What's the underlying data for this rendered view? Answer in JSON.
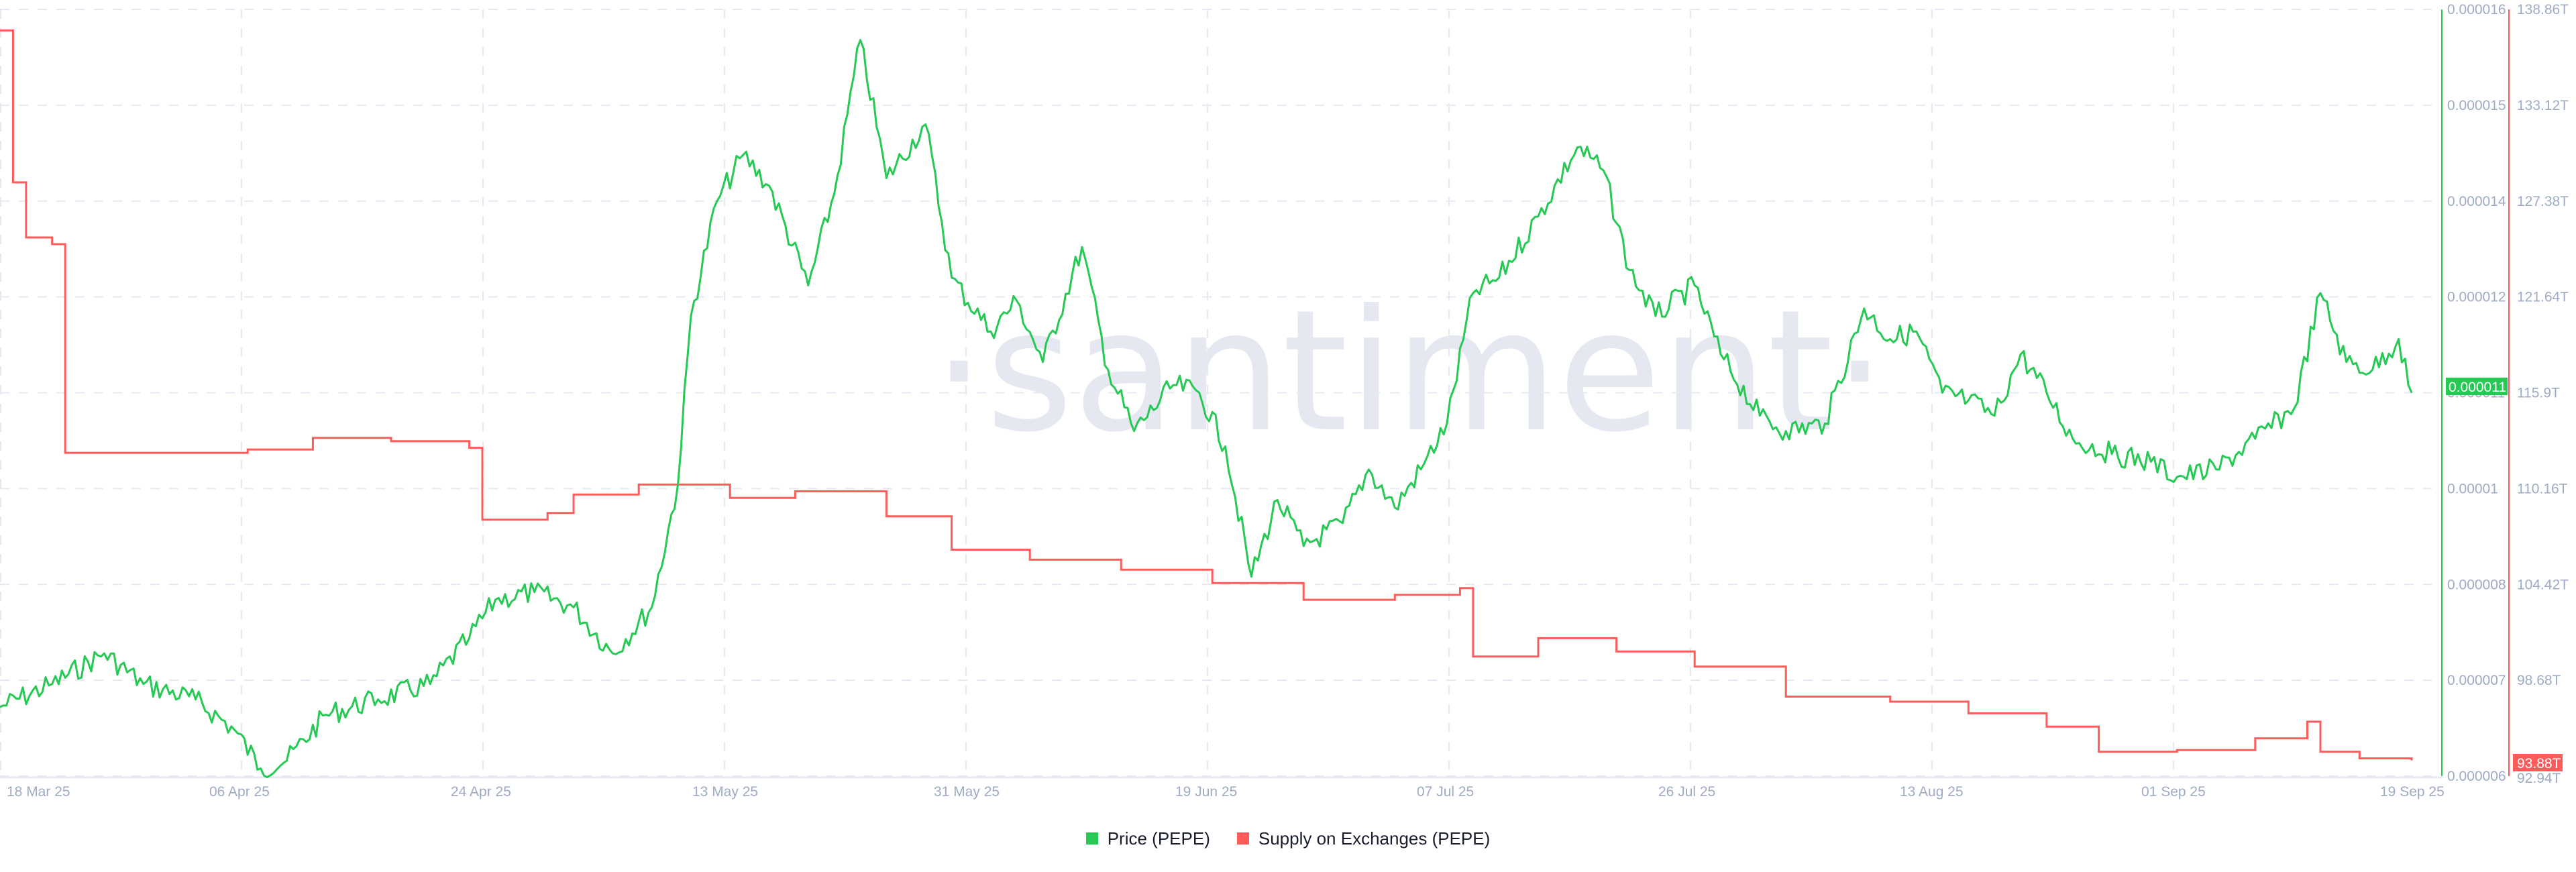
{
  "chart_data": {
    "type": "line",
    "title": "",
    "watermark": "·santiment·",
    "x_labels": [
      "18 Mar 25",
      "06 Apr 25",
      "24 Apr 25",
      "13 May 25",
      "31 May 25",
      "19 Jun 25",
      "07 Jul 25",
      "26 Jul 25",
      "13 Aug 25",
      "01 Sep 25",
      "19 Sep 25"
    ],
    "x_range": [
      "18 Mar 25",
      "19 Sep 25"
    ],
    "grid": true,
    "legend_position": "bottom-center",
    "axes": {
      "price": {
        "side": "right-inner",
        "color": "#26c953",
        "ticks": [
          "0.000016",
          "0.000015",
          "0.000014",
          "0.000012",
          "0.000011",
          "0.00001",
          "0.000008",
          "0.000007",
          "0.000006"
        ],
        "range": [
          6e-06,
          1.6e-05
        ],
        "current_value_badge": "0.000011"
      },
      "supply": {
        "side": "right-outer",
        "color": "#ff5b5b",
        "ticks": [
          "138.86T",
          "133.12T",
          "127.38T",
          "121.64T",
          "115.9T",
          "110.16T",
          "104.42T",
          "98.68T",
          "92.94T"
        ],
        "range": [
          92.94,
          138.86
        ],
        "unit": "T",
        "current_value_badge": "93.88T"
      }
    },
    "series": [
      {
        "name": "Price (PEPE)",
        "color": "#26c953",
        "axis": "price",
        "approx_points": [
          [
            "18 Mar 25",
            6.9e-06
          ],
          [
            "22 Mar 25",
            7.2e-06
          ],
          [
            "26 Mar 25",
            7.6e-06
          ],
          [
            "29 Mar 25",
            7.2e-06
          ],
          [
            "02 Apr 25",
            7e-06
          ],
          [
            "05 Apr 25",
            6.6e-06
          ],
          [
            "07 Apr 25",
            6.1e-06
          ],
          [
            "09 Apr 25",
            6.2e-06
          ],
          [
            "12 Apr 25",
            6.8e-06
          ],
          [
            "16 Apr 25",
            7e-06
          ],
          [
            "20 Apr 25",
            7.2e-06
          ],
          [
            "23 Apr 25",
            7.8e-06
          ],
          [
            "25 Apr 25",
            8.3e-06
          ],
          [
            "28 Apr 25",
            8.4e-06
          ],
          [
            "01 May 25",
            8.2e-06
          ],
          [
            "04 May 25",
            7.6e-06
          ],
          [
            "07 May 25",
            8.2e-06
          ],
          [
            "09 May 25",
            9.8e-06
          ],
          [
            "10 May 25",
            1.2e-05
          ],
          [
            "12 May 25",
            1.35e-05
          ],
          [
            "14 May 25",
            1.41e-05
          ],
          [
            "16 May 25",
            1.37e-05
          ],
          [
            "19 May 25",
            1.24e-05
          ],
          [
            "21 May 25",
            1.36e-05
          ],
          [
            "23 May 25",
            1.56e-05
          ],
          [
            "25 May 25",
            1.38e-05
          ],
          [
            "28 May 25",
            1.45e-05
          ],
          [
            "30 May 25",
            1.25e-05
          ],
          [
            "02 Jun 25",
            1.18e-05
          ],
          [
            "04 Jun 25",
            1.22e-05
          ],
          [
            "06 Jun 25",
            1.14e-05
          ],
          [
            "09 Jun 25",
            1.29e-05
          ],
          [
            "11 Jun 25",
            1.13e-05
          ],
          [
            "13 Jun 25",
            1.05e-05
          ],
          [
            "16 Jun 25",
            1.11e-05
          ],
          [
            "18 Jun 25",
            1.1e-05
          ],
          [
            "20 Jun 25",
            1.03e-05
          ],
          [
            "22 Jun 25",
            8.6e-06
          ],
          [
            "24 Jun 25",
            9.6e-06
          ],
          [
            "26 Jun 25",
            9e-06
          ],
          [
            "29 Jun 25",
            9.3e-06
          ],
          [
            "01 Jul 25",
            1e-05
          ],
          [
            "03 Jul 25",
            9.5e-06
          ],
          [
            "05 Jul 25",
            1e-05
          ],
          [
            "07 Jul 25",
            1.06e-05
          ],
          [
            "09 Jul 25",
            1.23e-05
          ],
          [
            "11 Jul 25",
            1.25e-05
          ],
          [
            "14 Jul 25",
            1.33e-05
          ],
          [
            "17 Jul 25",
            1.42e-05
          ],
          [
            "19 Jul 25",
            1.39e-05
          ],
          [
            "21 Jul 25",
            1.26e-05
          ],
          [
            "23 Jul 25",
            1.2e-05
          ],
          [
            "26 Jul 25",
            1.24e-05
          ],
          [
            "28 Jul 25",
            1.15e-05
          ],
          [
            "31 Jul 25",
            1.07e-05
          ],
          [
            "02 Aug 25",
            1.05e-05
          ],
          [
            "05 Aug 25",
            1.06e-05
          ],
          [
            "08 Aug 25",
            1.21e-05
          ],
          [
            "10 Aug 25",
            1.17e-05
          ],
          [
            "12 Aug 25",
            1.18e-05
          ],
          [
            "14 Aug 25",
            1.1e-05
          ],
          [
            "16 Aug 25",
            1.09e-05
          ],
          [
            "18 Aug 25",
            1.07e-05
          ],
          [
            "20 Aug 25",
            1.15e-05
          ],
          [
            "22 Aug 25",
            1.1e-05
          ],
          [
            "24 Aug 25",
            1.04e-05
          ],
          [
            "27 Aug 25",
            1.02e-05
          ],
          [
            "30 Aug 25",
            1.01e-05
          ],
          [
            "01 Sep 25",
            9.9e-06
          ],
          [
            "04 Sep 25",
            1e-05
          ],
          [
            "07 Sep 25",
            1.04e-05
          ],
          [
            "10 Sep 25",
            1.08e-05
          ],
          [
            "12 Sep 25",
            1.23e-05
          ],
          [
            "14 Sep 25",
            1.14e-05
          ],
          [
            "16 Sep 25",
            1.13e-05
          ],
          [
            "18 Sep 25",
            1.17e-05
          ],
          [
            "19 Sep 25",
            1.1e-05
          ]
        ]
      },
      {
        "name": "Supply on Exchanges (PEPE)",
        "color": "#ff5b5b",
        "axis": "supply",
        "approx_points": [
          [
            "18 Mar 25",
            137.6
          ],
          [
            "19 Mar 25",
            128.5
          ],
          [
            "20 Mar 25",
            125.2
          ],
          [
            "22 Mar 25",
            124.8
          ],
          [
            "23 Mar 25",
            112.3
          ],
          [
            "30 Mar 25",
            112.3
          ],
          [
            "06 Apr 25",
            112.5
          ],
          [
            "11 Apr 25",
            113.2
          ],
          [
            "17 Apr 25",
            113.0
          ],
          [
            "23 Apr 25",
            112.6
          ],
          [
            "24 Apr 25",
            108.3
          ],
          [
            "29 Apr 25",
            108.7
          ],
          [
            "01 May 25",
            109.8
          ],
          [
            "06 May 25",
            110.4
          ],
          [
            "13 May 25",
            109.6
          ],
          [
            "18 May 25",
            110.0
          ],
          [
            "25 May 25",
            108.5
          ],
          [
            "30 May 25",
            106.5
          ],
          [
            "05 Jun 25",
            105.9
          ],
          [
            "12 Jun 25",
            105.3
          ],
          [
            "19 Jun 25",
            104.5
          ],
          [
            "26 Jun 25",
            103.5
          ],
          [
            "03 Jul 25",
            103.8
          ],
          [
            "08 Jul 25",
            104.2
          ],
          [
            "09 Jul 25",
            100.1
          ],
          [
            "14 Jul 25",
            101.2
          ],
          [
            "20 Jul 25",
            100.4
          ],
          [
            "26 Jul 25",
            99.5
          ],
          [
            "02 Aug 25",
            97.7
          ],
          [
            "10 Aug 25",
            97.4
          ],
          [
            "16 Aug 25",
            96.7
          ],
          [
            "22 Aug 25",
            95.9
          ],
          [
            "26 Aug 25",
            94.4
          ],
          [
            "01 Sep 25",
            94.5
          ],
          [
            "07 Sep 25",
            95.2
          ],
          [
            "11 Sep 25",
            96.2
          ],
          [
            "12 Sep 25",
            94.4
          ],
          [
            "15 Sep 25",
            94.0
          ],
          [
            "19 Sep 25",
            93.88
          ]
        ]
      }
    ]
  },
  "legend": {
    "items": [
      {
        "label": "Price (PEPE)",
        "color": "#26c953"
      },
      {
        "label": "Supply on Exchanges (PEPE)",
        "color": "#ff5b5b"
      }
    ]
  }
}
